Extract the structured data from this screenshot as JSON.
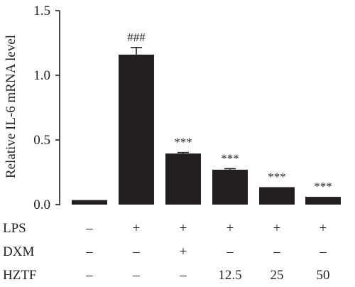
{
  "chart_data": {
    "type": "bar",
    "ylabel": "Relative IL-6 mRNA level",
    "ylim": [
      0,
      1.5
    ],
    "yticks": [
      {
        "value": 0,
        "label": "0.0"
      },
      {
        "value": 0.5,
        "label": "0.5"
      },
      {
        "value": 1.0,
        "label": "1.0"
      },
      {
        "value": 1.5,
        "label": "1.5"
      }
    ],
    "values": [
      0.035,
      1.16,
      0.395,
      0.27,
      0.135,
      0.06
    ],
    "errors": [
      0,
      0.055,
      0.008,
      0.008,
      0,
      0
    ],
    "annotations": [
      "",
      "###",
      "***",
      "***",
      "***",
      "***"
    ],
    "bar_color": "#231f20",
    "grid": false,
    "conditions": [
      {
        "label": "LPS",
        "values": [
          "–",
          "+",
          "+",
          "+",
          "+",
          "+"
        ]
      },
      {
        "label": "DXM",
        "values": [
          "–",
          "–",
          "+",
          "–",
          "–",
          "–"
        ]
      },
      {
        "label": "HZTF",
        "values": [
          "–",
          "–",
          "–",
          "12.5",
          "25",
          "50"
        ]
      }
    ]
  }
}
